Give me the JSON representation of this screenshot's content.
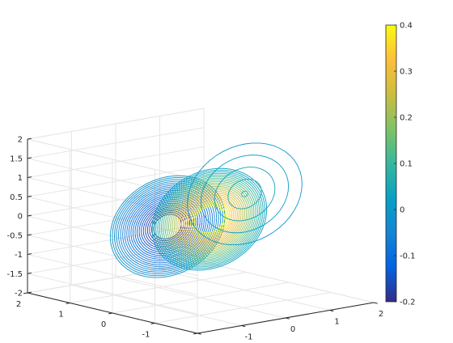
{
  "chart_data": {
    "type": "contour3",
    "title": "",
    "xlabel": "",
    "ylabel": "",
    "zlabel": "",
    "xlim": [
      -2,
      2
    ],
    "ylim": [
      -2,
      2
    ],
    "zlim": [
      -2,
      2
    ],
    "x_ticks": [
      "-2",
      "-1",
      "0",
      "1",
      "2"
    ],
    "y_ticks": [
      "-2",
      "-1",
      "0",
      "1",
      "2"
    ],
    "z_ticks": [
      "-2",
      "-1.5",
      "-1",
      "-0.5",
      "0",
      "0.5",
      "1",
      "1.5",
      "2"
    ],
    "grid": true,
    "colormap": "parula",
    "colorbar": {
      "placement": "right",
      "range": [
        -0.2,
        0.4
      ],
      "ticks": [
        "-0.2",
        "-0.1",
        "0",
        "0.1",
        "0.2",
        "0.3",
        "0.4"
      ]
    },
    "colors": {
      "axis": "#262626",
      "grid": "#e6e6e6"
    },
    "peaks": [
      {
        "x": -0.75,
        "z": 0.0,
        "amplitude": -0.2,
        "rings": 22
      },
      {
        "x": 0.2,
        "z": 0.0,
        "amplitude": 0.4,
        "rings": 24
      },
      {
        "x": 1.0,
        "z": 0.5,
        "amplitude": 0.07,
        "rings": 5
      }
    ]
  }
}
